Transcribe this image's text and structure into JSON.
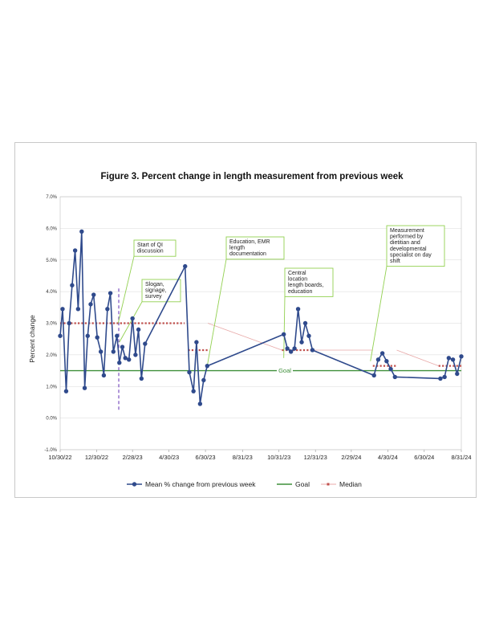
{
  "chart_data": {
    "type": "line",
    "title": "Figure 3. Percent change in length measurement from previous week",
    "ylabel": "Percent change",
    "xlabel": "",
    "ylim": [
      -1.0,
      7.0
    ],
    "y_ticks": [
      "-1.0%",
      "0.0%",
      "1.0%",
      "2.0%",
      "3.0%",
      "4.0%",
      "5.0%",
      "6.0%",
      "7.0%"
    ],
    "x_ticks": [
      {
        "date": "2022-10-30",
        "label": "10/30/22"
      },
      {
        "date": "2022-12-30",
        "label": "12/30/22"
      },
      {
        "date": "2023-02-28",
        "label": "2/28/23"
      },
      {
        "date": "2023-04-30",
        "label": "4/30/23"
      },
      {
        "date": "2023-06-30",
        "label": "6/30/23"
      },
      {
        "date": "2023-08-31",
        "label": "8/31/23"
      },
      {
        "date": "2023-10-31",
        "label": "10/31/23"
      },
      {
        "date": "2023-12-31",
        "label": "12/31/23"
      },
      {
        "date": "2024-02-29",
        "label": "2/29/24"
      },
      {
        "date": "2024-04-30",
        "label": "4/30/24"
      },
      {
        "date": "2024-06-30",
        "label": "6/30/24"
      },
      {
        "date": "2024-08-31",
        "label": "8/31/24"
      }
    ],
    "grid": true,
    "legend_position": "bottom",
    "colors": {
      "series": "#2f4a8c",
      "goal": "#3f8f3a",
      "median": "#c0504d",
      "callout": "#92d050",
      "phase_line": "#7b4fbf"
    },
    "series": [
      {
        "name": "Mean % change from previous week",
        "points": [
          [
            "2022-10-30",
            2.6
          ],
          [
            "2022-11-03",
            3.45
          ],
          [
            "2022-11-09",
            0.85
          ],
          [
            "2022-11-14",
            3.0
          ],
          [
            "2022-11-19",
            4.2
          ],
          [
            "2022-11-24",
            5.3
          ],
          [
            "2022-11-29",
            3.45
          ],
          [
            "2022-12-05",
            5.9
          ],
          [
            "2022-12-10",
            0.95
          ],
          [
            "2022-12-15",
            2.6
          ],
          [
            "2022-12-20",
            3.6
          ],
          [
            "2022-12-25",
            3.9
          ],
          [
            "2022-12-31",
            2.55
          ],
          [
            "2023-01-06",
            2.1
          ],
          [
            "2023-01-11",
            1.35
          ],
          [
            "2023-01-17",
            3.45
          ],
          [
            "2023-01-22",
            3.95
          ],
          [
            "2023-01-27",
            2.1
          ],
          [
            "2023-02-02",
            2.6
          ],
          [
            "2023-02-06",
            1.75
          ],
          [
            "2023-02-11",
            2.25
          ],
          [
            "2023-02-16",
            1.9
          ],
          [
            "2023-02-22",
            1.85
          ],
          [
            "2023-02-28",
            3.15
          ],
          [
            "2023-03-05",
            2.0
          ],
          [
            "2023-03-10",
            2.8
          ],
          [
            "2023-03-15",
            1.25
          ],
          [
            "2023-03-21",
            2.35
          ],
          [
            "2023-05-27",
            4.8
          ],
          [
            "2023-06-03",
            1.45
          ],
          [
            "2023-06-10",
            0.85
          ],
          [
            "2023-06-15",
            2.4
          ],
          [
            "2023-06-21",
            0.45
          ],
          [
            "2023-06-27",
            1.2
          ],
          [
            "2023-07-03",
            1.65
          ],
          [
            "2023-11-08",
            2.65
          ],
          [
            "2023-11-14",
            2.2
          ],
          [
            "2023-11-20",
            2.1
          ],
          [
            "2023-11-26",
            2.2
          ],
          [
            "2023-12-02",
            3.45
          ],
          [
            "2023-12-08",
            2.4
          ],
          [
            "2023-12-14",
            3.0
          ],
          [
            "2023-12-20",
            2.6
          ],
          [
            "2023-12-26",
            2.15
          ],
          [
            "2024-04-07",
            1.35
          ],
          [
            "2024-04-14",
            1.85
          ],
          [
            "2024-04-21",
            2.05
          ],
          [
            "2024-04-28",
            1.8
          ],
          [
            "2024-05-05",
            1.55
          ],
          [
            "2024-05-12",
            1.3
          ],
          [
            "2024-07-27",
            1.25
          ],
          [
            "2024-08-03",
            1.3
          ],
          [
            "2024-08-10",
            1.9
          ],
          [
            "2024-08-17",
            1.85
          ],
          [
            "2024-08-24",
            1.4
          ],
          [
            "2024-08-31",
            1.95
          ]
        ]
      },
      {
        "name": "Goal",
        "value": 1.5,
        "x_range": [
          "2022-10-30",
          "2024-08-31"
        ]
      },
      {
        "name": "Median",
        "segments": [
          {
            "from": "2022-10-30",
            "to": "2023-05-26",
            "value": 3.0
          },
          {
            "from": "2023-06-01",
            "to": "2023-07-04",
            "value": 2.15
          },
          {
            "from": "2023-11-05",
            "to": "2023-12-27",
            "value": 2.15
          },
          {
            "from": "2024-04-05",
            "to": "2024-05-15",
            "value": 1.65
          },
          {
            "from": "2024-07-24",
            "to": "2024-08-31",
            "value": 1.65
          }
        ],
        "connectors": [
          {
            "from": "2023-07-04",
            "to": "2023-11-05",
            "value": 2.15
          },
          {
            "from": "2023-12-27",
            "to": "2024-04-05"
          },
          {
            "from": "2024-05-15",
            "to": "2024-07-24",
            "value": 1.65
          }
        ]
      }
    ],
    "goal_label": "Goal",
    "phase_line": {
      "date": "2023-02-05",
      "from": 0.2,
      "to": 4.1
    },
    "annotations": [
      {
        "lines": [
          "Start of QI",
          "discussion"
        ],
        "pointer_date": "2023-02-04",
        "pointer_value": 3.0
      },
      {
        "lines": [
          "Slogan,",
          "signage,",
          "survey"
        ],
        "pointer_date": "2023-02-06",
        "pointer_value": 2.4
      },
      {
        "lines": [
          "Education, EMR",
          "length",
          "documentation"
        ],
        "pointer_date": "2023-07-03",
        "pointer_value": 1.65
      },
      {
        "lines": [
          "Central",
          "location",
          "length boards,",
          "education"
        ],
        "pointer_date": "2023-11-08",
        "pointer_value": 1.9
      },
      {
        "lines": [
          "Measurement",
          "performed by",
          "dietitian and",
          "developmental",
          "specialist on day",
          "shift"
        ],
        "pointer_date": "2024-04-01",
        "pointer_value": 1.8
      }
    ]
  }
}
